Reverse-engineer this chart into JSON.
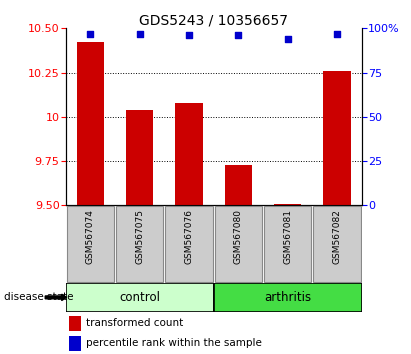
{
  "title": "GDS5243 / 10356657",
  "samples": [
    "GSM567074",
    "GSM567075",
    "GSM567076",
    "GSM567080",
    "GSM567081",
    "GSM567082"
  ],
  "bar_values": [
    10.42,
    10.04,
    10.08,
    9.73,
    9.51,
    10.26
  ],
  "percentile_values": [
    97,
    97,
    96,
    96,
    94,
    97
  ],
  "ylim_left": [
    9.5,
    10.5
  ],
  "ylim_right": [
    0,
    100
  ],
  "yticks_left": [
    9.5,
    9.75,
    10.0,
    10.25,
    10.5
  ],
  "yticks_right": [
    0,
    25,
    50,
    75,
    100
  ],
  "bar_color": "#cc0000",
  "dot_color": "#0000cc",
  "control_color": "#ccffcc",
  "arthritis_color": "#44dd44",
  "label_bg_color": "#cccccc",
  "legend_bar_label": "transformed count",
  "legend_dot_label": "percentile rank within the sample",
  "disease_state_label": "disease state",
  "control_label": "control",
  "arthritis_label": "arthritis",
  "n_control": 3,
  "n_arthritis": 3
}
